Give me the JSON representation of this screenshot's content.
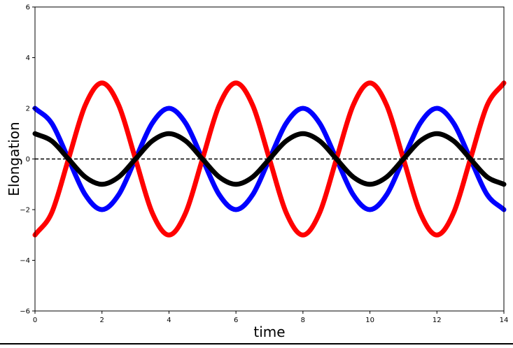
{
  "chart_data": {
    "type": "line",
    "title": "",
    "xlabel": "time",
    "ylabel": "Elongation",
    "xlim": [
      0,
      14
    ],
    "ylim": [
      -6,
      6
    ],
    "x_ticks": [
      0,
      2,
      4,
      6,
      8,
      10,
      12,
      14
    ],
    "y_ticks": [
      -6,
      -4,
      -2,
      0,
      2,
      4,
      6
    ],
    "x_tick_labels": [
      "0",
      "2",
      "4",
      "6",
      "8",
      "10",
      "12",
      "14"
    ],
    "y_tick_labels": [
      "−6",
      "−4",
      "−2",
      "0",
      "2",
      "4",
      "6"
    ],
    "grid": false,
    "legend": "none",
    "x": [
      0,
      0.5,
      1,
      1.5,
      2,
      2.5,
      3,
      3.5,
      4,
      4.5,
      5,
      5.5,
      6,
      6.5,
      7,
      7.5,
      8,
      8.5,
      9,
      9.5,
      10,
      10.5,
      11,
      11.5,
      12,
      12.5,
      13,
      13.5,
      14
    ],
    "series": [
      {
        "color": "#0000ff",
        "values": [
          2,
          1.41,
          0,
          -1.41,
          -2,
          -1.41,
          0,
          1.41,
          2,
          1.41,
          0,
          -1.41,
          -2,
          -1.41,
          0,
          1.41,
          2,
          1.41,
          0,
          -1.41,
          -2,
          -1.41,
          0,
          1.41,
          2,
          1.41,
          0,
          -1.41,
          -2
        ]
      },
      {
        "color": "#ff0000",
        "values": [
          -3,
          -2.12,
          0,
          2.12,
          3,
          2.12,
          0,
          -2.12,
          -3,
          -2.12,
          0,
          2.12,
          3,
          2.12,
          0,
          -2.12,
          -3,
          -2.12,
          0,
          2.12,
          3,
          2.12,
          0,
          -2.12,
          -3,
          -2.12,
          0,
          2.12,
          3
        ]
      },
      {
        "color": "#000000",
        "values": [
          1,
          0.71,
          0,
          -0.71,
          -1,
          -0.71,
          0,
          0.71,
          1,
          0.71,
          0,
          -0.71,
          -1,
          -0.71,
          0,
          0.71,
          1,
          0.71,
          0,
          -0.71,
          -1,
          -0.71,
          0,
          0.71,
          1,
          0.71,
          0,
          -0.71,
          -1
        ]
      }
    ],
    "reference_line": {
      "y": 0,
      "style": "dashed",
      "color": "#000000"
    }
  }
}
